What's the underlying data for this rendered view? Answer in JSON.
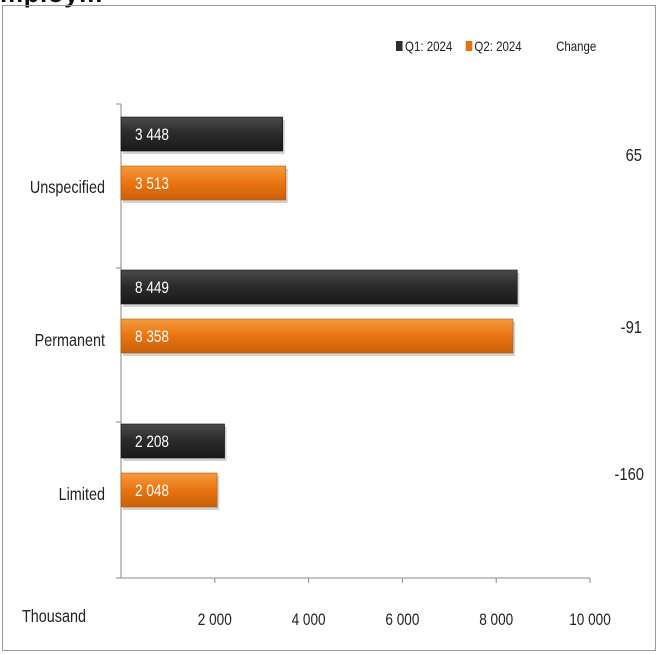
{
  "title_partial": "mploym",
  "chart_data": {
    "type": "bar",
    "orientation": "horizontal",
    "categories": [
      "Unspecified",
      "Permanent",
      "Limited"
    ],
    "series": [
      {
        "name": "Q1: 2024",
        "values": [
          3448,
          8449,
          2208
        ],
        "labels": [
          "3 448",
          "8 449",
          "2 208"
        ],
        "color": "#2e2e2e"
      },
      {
        "name": "Q2: 2024",
        "values": [
          3513,
          8358,
          2048
        ],
        "labels": [
          "3 513",
          "8 358",
          "2 048"
        ],
        "color": "#e8700c"
      }
    ],
    "change_header": "Change",
    "change_values": [
      "65",
      "-91",
      "-160"
    ],
    "xlabel": "Thousand",
    "xlim": [
      0,
      10000
    ],
    "xticks": [
      2000,
      4000,
      6000,
      8000,
      10000
    ],
    "xtick_labels": [
      "2 000",
      "4 000",
      "6 000",
      "8 000",
      "10 000"
    ],
    "grid": false,
    "legend_position": "top-right"
  }
}
